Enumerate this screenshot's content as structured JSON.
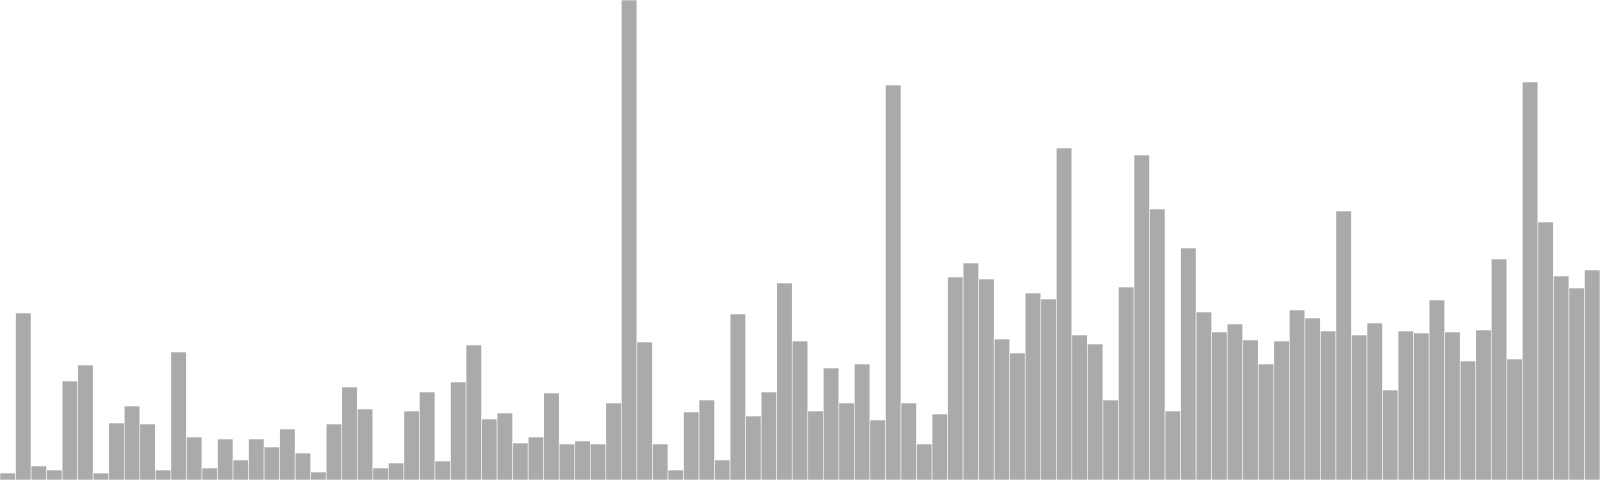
{
  "chart_data": {
    "type": "bar",
    "title": "",
    "xlabel": "",
    "ylabel": "",
    "grid": false,
    "legend": false,
    "bar_color": "#aaaaaa",
    "background": "#ffffff",
    "ylim": [
      0,
      480
    ],
    "values": [
      7,
      167,
      14,
      10,
      99,
      115,
      7,
      57,
      74,
      56,
      10,
      128,
      43,
      12,
      41,
      20,
      41,
      33,
      51,
      27,
      8,
      56,
      93,
      71,
      12,
      17,
      69,
      88,
      19,
      98,
      135,
      61,
      67,
      37,
      43,
      87,
      36,
      39,
      36,
      77,
      480,
      138,
      36,
      10,
      68,
      80,
      20,
      166,
      64,
      88,
      197,
      139,
      69,
      112,
      77,
      116,
      60,
      395,
      77,
      36,
      66,
      203,
      217,
      201,
      141,
      127,
      187,
      181,
      332,
      145,
      136,
      80,
      193,
      325,
      271,
      69,
      232,
      168,
      148,
      156,
      140,
      116,
      139,
      170,
      162,
      149,
      269,
      145,
      157,
      90,
      149,
      147,
      180,
      148,
      119,
      150,
      221,
      121,
      398,
      258,
      204,
      192,
      210
    ]
  }
}
